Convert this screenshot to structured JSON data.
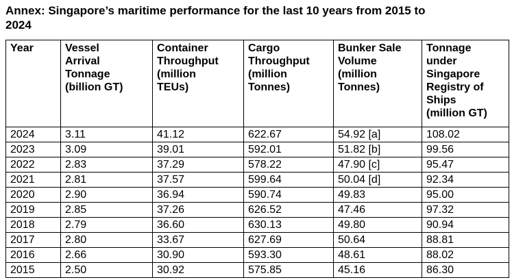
{
  "title": "Annex: Singapore’s maritime performance for the last 10 years from 2015 to\n2024",
  "table": {
    "columns": [
      "Year",
      "Vessel\nArrival\nTonnage\n(billion GT)",
      "Container\nThroughput\n(million\nTEUs)",
      "Cargo\nThroughput\n(million\nTonnes)",
      "Bunker Sale\nVolume\n(million\nTonnes)",
      "Tonnage\nunder\nSingapore\nRegistry of\nShips\n(million GT)"
    ],
    "column_names_plain": [
      "Year",
      "Vessel Arrival Tonnage (billion GT)",
      "Container Throughput (million TEUs)",
      "Cargo Throughput (million Tonnes)",
      "Bunker Sale Volume (million Tonnes)",
      "Tonnage under Singapore Registry of Ships (million GT)"
    ],
    "rows": [
      [
        "2024",
        "3.11",
        "41.12",
        "622.67",
        "54.92 [a]",
        "108.02"
      ],
      [
        "2023",
        "3.09",
        "39.01",
        "592.01",
        "51.82 [b]",
        "99.56"
      ],
      [
        "2022",
        "2.83",
        "37.29",
        "578.22",
        "47.90 [c]",
        "95.47"
      ],
      [
        "2021",
        "2.81",
        "37.57",
        "599.64",
        "50.04 [d]",
        "92.34"
      ],
      [
        "2020",
        "2.90",
        "36.94",
        "590.74",
        "49.83",
        "95.00"
      ],
      [
        "2019",
        "2.85",
        "37.26",
        "626.52",
        "47.46",
        "97.32"
      ],
      [
        "2018",
        "2.79",
        "36.60",
        "630.13",
        "49.80",
        "90.94"
      ],
      [
        "2017",
        "2.80",
        "33.67",
        "627.69",
        "50.64",
        "88.81"
      ],
      [
        "2016",
        "2.66",
        "30.90",
        "593.30",
        "48.61",
        "88.02"
      ],
      [
        "2015",
        "2.50",
        "30.92",
        "575.85",
        "45.16",
        "86.30"
      ]
    ]
  },
  "colors": {
    "text": "#000000",
    "background": "#ffffff",
    "border": "#000000"
  }
}
